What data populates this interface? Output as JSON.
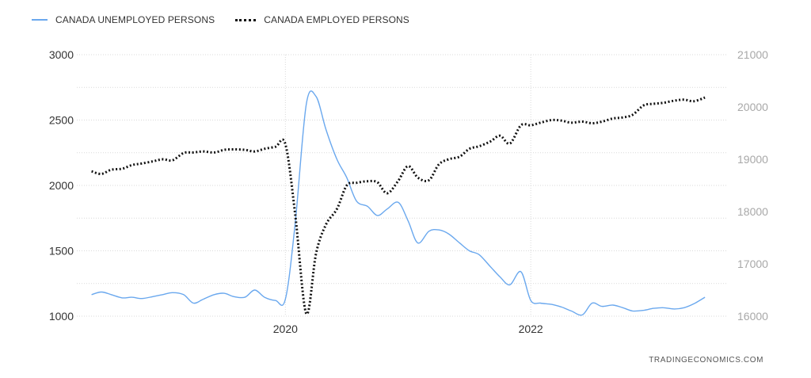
{
  "legend": {
    "series1": "CANADA UNEMPLOYED PERSONS",
    "series2": "CANADA EMPLOYED PERSONS"
  },
  "watermark": "TRADINGECONOMICS.COM",
  "colors": {
    "unemployed": "#6aa8ee",
    "employed": "#111111",
    "grid": "#d9d9d9",
    "left_axis_text": "#333333",
    "right_axis_text": "#a8a8a8"
  },
  "chart_data": {
    "type": "line",
    "x_tick_labels": [
      "2020",
      "2022"
    ],
    "x_ticks": [
      2020,
      2022
    ],
    "xlim": [
      2018.3,
      2023.6
    ],
    "left_axis": {
      "ylim": [
        1000,
        3000
      ],
      "ticks": [
        1000,
        1500,
        2000,
        2500,
        3000
      ]
    },
    "right_axis": {
      "ylim": [
        16000,
        21000
      ],
      "ticks": [
        16000,
        17000,
        18000,
        19000,
        20000,
        21000
      ]
    },
    "grid": true,
    "legend_position": "top-left",
    "series": [
      {
        "name": "CANADA UNEMPLOYED PERSONS",
        "axis": "left",
        "style": "solid",
        "x": [
          2018.42,
          2018.5,
          2018.58,
          2018.67,
          2018.75,
          2018.83,
          2018.92,
          2019.0,
          2019.08,
          2019.17,
          2019.25,
          2019.33,
          2019.42,
          2019.5,
          2019.58,
          2019.67,
          2019.75,
          2019.83,
          2019.92,
          2020.0,
          2020.08,
          2020.17,
          2020.25,
          2020.33,
          2020.42,
          2020.5,
          2020.58,
          2020.67,
          2020.75,
          2020.83,
          2020.92,
          2021.0,
          2021.08,
          2021.17,
          2021.25,
          2021.33,
          2021.42,
          2021.5,
          2021.58,
          2021.67,
          2021.75,
          2021.83,
          2021.92,
          2022.0,
          2022.08,
          2022.17,
          2022.25,
          2022.33,
          2022.42,
          2022.5,
          2022.58,
          2022.67,
          2022.75,
          2022.83,
          2022.92,
          2023.0,
          2023.08,
          2023.17,
          2023.25,
          2023.33,
          2023.42
        ],
        "values": [
          1165,
          1185,
          1165,
          1140,
          1145,
          1135,
          1150,
          1165,
          1180,
          1165,
          1100,
          1130,
          1165,
          1175,
          1150,
          1145,
          1200,
          1145,
          1120,
          1130,
          1710,
          2620,
          2680,
          2430,
          2200,
          2060,
          1880,
          1840,
          1770,
          1820,
          1870,
          1730,
          1560,
          1650,
          1660,
          1630,
          1560,
          1500,
          1470,
          1380,
          1300,
          1240,
          1340,
          1120,
          1100,
          1090,
          1070,
          1040,
          1010,
          1100,
          1075,
          1085,
          1065,
          1040,
          1045,
          1060,
          1065,
          1055,
          1065,
          1095,
          1145
        ]
      },
      {
        "name": "CANADA EMPLOYED PERSONS",
        "axis": "right",
        "style": "dotted",
        "x": [
          2018.42,
          2018.5,
          2018.58,
          2018.67,
          2018.75,
          2018.83,
          2018.92,
          2019.0,
          2019.08,
          2019.17,
          2019.25,
          2019.33,
          2019.42,
          2019.5,
          2019.58,
          2019.67,
          2019.75,
          2019.83,
          2019.92,
          2020.0,
          2020.08,
          2020.17,
          2020.25,
          2020.33,
          2020.42,
          2020.5,
          2020.58,
          2020.67,
          2020.75,
          2020.83,
          2020.92,
          2021.0,
          2021.08,
          2021.17,
          2021.25,
          2021.33,
          2021.42,
          2021.5,
          2021.58,
          2021.67,
          2021.75,
          2021.83,
          2021.92,
          2022.0,
          2022.08,
          2022.17,
          2022.25,
          2022.33,
          2022.42,
          2022.5,
          2022.58,
          2022.67,
          2022.75,
          2022.83,
          2022.92,
          2023.0,
          2023.08,
          2023.17,
          2023.25,
          2023.33,
          2023.42
        ],
        "values": [
          18770,
          18720,
          18800,
          18820,
          18890,
          18920,
          18960,
          19000,
          18980,
          19120,
          19130,
          19150,
          19130,
          19180,
          19190,
          19180,
          19150,
          19200,
          19240,
          19290,
          17950,
          16050,
          17200,
          17750,
          18050,
          18500,
          18550,
          18580,
          18560,
          18350,
          18590,
          18870,
          18650,
          18600,
          18900,
          19000,
          19050,
          19200,
          19250,
          19340,
          19450,
          19300,
          19650,
          19650,
          19700,
          19750,
          19740,
          19700,
          19720,
          19690,
          19720,
          19780,
          19800,
          19850,
          20030,
          20060,
          20080,
          20120,
          20140,
          20110,
          20180
        ]
      }
    ]
  }
}
